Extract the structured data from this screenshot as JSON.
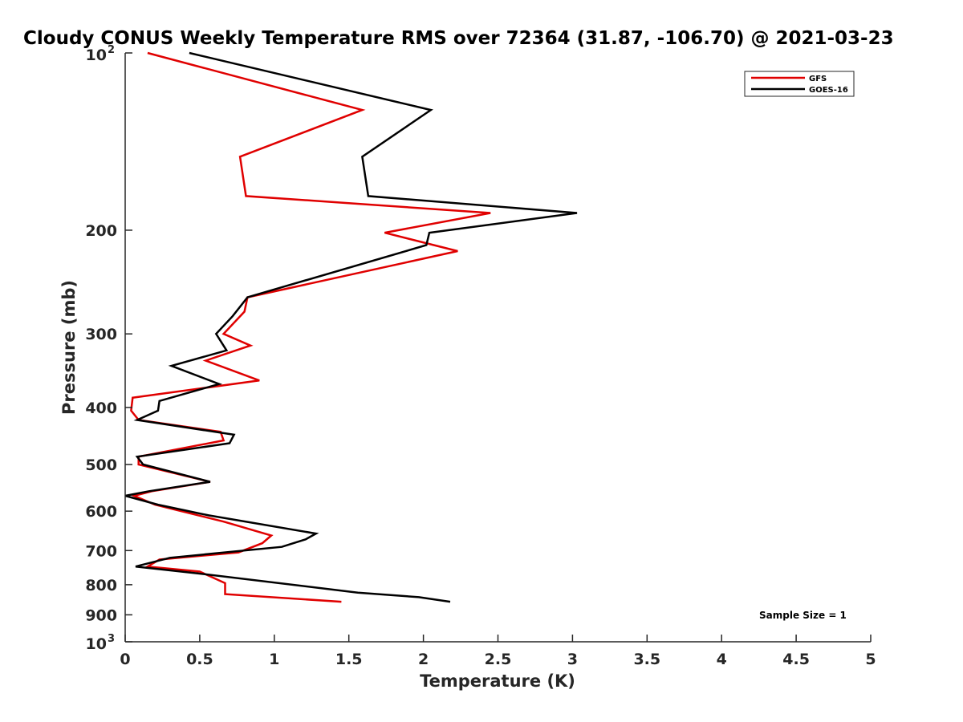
{
  "chart_data": {
    "type": "line",
    "title": "Cloudy CONUS Weekly Temperature RMS over 72364 (31.87, -106.70) @ 2021-03-23",
    "xlabel": "Temperature (K)",
    "ylabel": "Pressure (mb)",
    "xlim": [
      0,
      5
    ],
    "ylim": [
      100,
      1000
    ],
    "y_scale": "log",
    "y_reversed": true,
    "grid": false,
    "legend_position": "top-right",
    "x_ticks": [
      "0",
      "0.5",
      "1",
      "1.5",
      "2",
      "2.5",
      "3",
      "3.5",
      "4",
      "4.5",
      "5"
    ],
    "y_ticks": [
      {
        "value": 100,
        "base": "10",
        "exp": "2"
      },
      {
        "value": 200,
        "label": "200"
      },
      {
        "value": 300,
        "label": "300"
      },
      {
        "value": 400,
        "label": "400"
      },
      {
        "value": 500,
        "label": "500"
      },
      {
        "value": 600,
        "label": "600"
      },
      {
        "value": 700,
        "label": "700"
      },
      {
        "value": 800,
        "label": "800"
      },
      {
        "value": 900,
        "label": "900"
      },
      {
        "value": 1000,
        "base": "10",
        "exp": "3"
      }
    ],
    "annotation": "Sample Size = 1",
    "series": [
      {
        "name": "GFS",
        "color": "#e00000",
        "points": [
          [
            0.15,
            100
          ],
          [
            1.59,
            125
          ],
          [
            0.77,
            150
          ],
          [
            0.81,
            175
          ],
          [
            2.45,
            187
          ],
          [
            1.74,
            202
          ],
          [
            2.23,
            217
          ],
          [
            0.82,
            260
          ],
          [
            0.8,
            275
          ],
          [
            0.66,
            300
          ],
          [
            0.84,
            314
          ],
          [
            0.54,
            333
          ],
          [
            0.9,
            360
          ],
          [
            0.05,
            385
          ],
          [
            0.04,
            405
          ],
          [
            0.09,
            420
          ],
          [
            0.64,
            440
          ],
          [
            0.66,
            455
          ],
          [
            0.09,
            485
          ],
          [
            0.09,
            500
          ],
          [
            0.57,
            535
          ],
          [
            0.18,
            555
          ],
          [
            0.06,
            565
          ],
          [
            0.2,
            585
          ],
          [
            0.66,
            625
          ],
          [
            0.98,
            660
          ],
          [
            0.92,
            680
          ],
          [
            0.76,
            705
          ],
          [
            0.23,
            725
          ],
          [
            0.15,
            745
          ],
          [
            0.5,
            760
          ],
          [
            0.67,
            795
          ],
          [
            0.67,
            830
          ],
          [
            1.45,
            855
          ]
        ]
      },
      {
        "name": "GOES-16",
        "color": "#000000",
        "points": [
          [
            0.43,
            100
          ],
          [
            2.05,
            125
          ],
          [
            1.59,
            150
          ],
          [
            1.63,
            175
          ],
          [
            3.03,
            187
          ],
          [
            2.04,
            202
          ],
          [
            2.02,
            212
          ],
          [
            0.82,
            260
          ],
          [
            0.72,
            280
          ],
          [
            0.61,
            300
          ],
          [
            0.68,
            320
          ],
          [
            0.31,
            340
          ],
          [
            0.63,
            365
          ],
          [
            0.23,
            390
          ],
          [
            0.22,
            405
          ],
          [
            0.08,
            420
          ],
          [
            0.73,
            445
          ],
          [
            0.7,
            460
          ],
          [
            0.08,
            485
          ],
          [
            0.12,
            500
          ],
          [
            0.57,
            535
          ],
          [
            0.16,
            555
          ],
          [
            0.0,
            565
          ],
          [
            0.22,
            585
          ],
          [
            0.56,
            610
          ],
          [
            1.28,
            655
          ],
          [
            1.21,
            670
          ],
          [
            1.05,
            690
          ],
          [
            0.3,
            720
          ],
          [
            0.07,
            745
          ],
          [
            0.48,
            765
          ],
          [
            1.56,
            825
          ],
          [
            1.97,
            840
          ],
          [
            2.18,
            855
          ]
        ]
      }
    ]
  }
}
